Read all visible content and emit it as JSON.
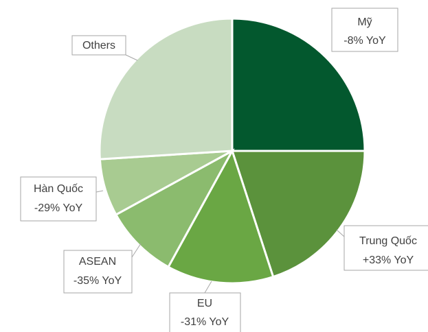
{
  "chart_data": {
    "type": "pie",
    "categories": [
      "Mỹ",
      "Trung Quốc",
      "EU",
      "ASEAN",
      "Hàn Quốc",
      "Others"
    ],
    "values": [
      25,
      20,
      13,
      9,
      7,
      26
    ],
    "annotations": [
      "-8% YoY",
      "+33% YoY",
      "-31% YoY",
      "-35% YoY",
      "-29% YoY",
      null
    ],
    "colors": [
      "#03582e",
      "#5b923c",
      "#6aa744",
      "#8bbb6e",
      "#a8cb91",
      "#c8dcc1"
    ]
  }
}
